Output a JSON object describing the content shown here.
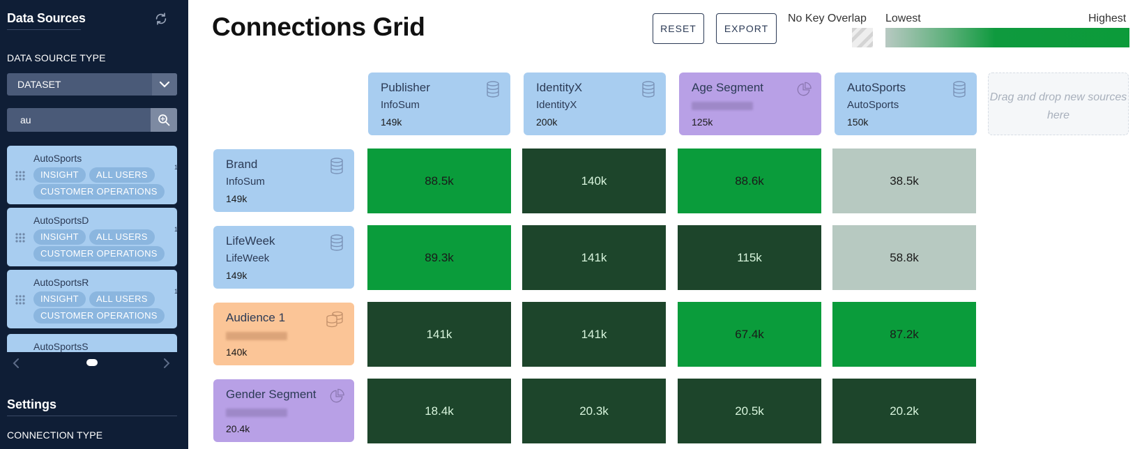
{
  "sidebar": {
    "title": "Data Sources",
    "data_source_type_label": "DATA SOURCE TYPE",
    "data_source_type_value": "DATASET",
    "search_value": "au",
    "sources": [
      {
        "name": "AutoSports",
        "tags": [
          "INSIGHT",
          "ALL USERS",
          "CUSTOMER OPERATIONS"
        ],
        "edge": "15"
      },
      {
        "name": "AutoSportsD",
        "tags": [
          "INSIGHT",
          "ALL USERS",
          "CUSTOMER OPERATIONS"
        ],
        "edge": "14"
      },
      {
        "name": "AutoSportsR",
        "tags": [
          "INSIGHT",
          "ALL USERS",
          "CUSTOMER OPERATIONS"
        ],
        "edge": "15"
      },
      {
        "name": "AutoSportsS"
      }
    ],
    "settings_title": "Settings",
    "connection_type_label": "CONNECTION TYPE"
  },
  "main": {
    "title": "Connections Grid",
    "reset_label": "RESET",
    "export_label": "EXPORT",
    "legend": {
      "no_key_overlap": "No Key Overlap",
      "lowest": "Lowest",
      "highest": "Highest"
    },
    "dropzone_text": "Drag and drop new sources here",
    "columns": [
      {
        "name": "Publisher",
        "sub": "InfoSum",
        "count": "149k",
        "icon": "database-icon",
        "color": "#a8cdf0"
      },
      {
        "name": "IdentityX",
        "sub": "IdentityX",
        "count": "200k",
        "icon": "database-icon",
        "color": "#a8cdf0"
      },
      {
        "name": "Age Segment",
        "sub": "",
        "count": "125k",
        "icon": "pie-chart-icon",
        "color": "#b8a0e6"
      },
      {
        "name": "AutoSports",
        "sub": "AutoSports",
        "count": "150k",
        "icon": "database-icon",
        "color": "#a8cdf0"
      }
    ],
    "rows": [
      {
        "name": "Brand",
        "sub": "InfoSum",
        "count": "149k",
        "icon": "database-icon",
        "color": "#a8cdf0",
        "cells": [
          {
            "v": "88.5k",
            "lvl": "bright"
          },
          {
            "v": "140k",
            "lvl": "dark"
          },
          {
            "v": "88.6k",
            "lvl": "bright"
          },
          {
            "v": "38.5k",
            "lvl": "light"
          }
        ]
      },
      {
        "name": "LifeWeek",
        "sub": "LifeWeek",
        "count": "149k",
        "icon": "database-icon",
        "color": "#a8cdf0",
        "cells": [
          {
            "v": "89.3k",
            "lvl": "bright"
          },
          {
            "v": "141k",
            "lvl": "dark"
          },
          {
            "v": "115k",
            "lvl": "dark"
          },
          {
            "v": "58.8k",
            "lvl": "light"
          }
        ]
      },
      {
        "name": "Audience 1",
        "sub": "",
        "count": "140k",
        "icon": "stacked-database-icon",
        "color": "#fbc597",
        "cells": [
          {
            "v": "141k",
            "lvl": "dark"
          },
          {
            "v": "141k",
            "lvl": "dark"
          },
          {
            "v": "67.4k",
            "lvl": "bright"
          },
          {
            "v": "87.2k",
            "lvl": "bright"
          }
        ]
      },
      {
        "name": "Gender Segment",
        "sub": "",
        "count": "20.4k",
        "icon": "pie-chart-icon",
        "color": "#b8a0e6",
        "cells": [
          {
            "v": "18.4k",
            "lvl": "dark"
          },
          {
            "v": "20.3k",
            "lvl": "dark"
          },
          {
            "v": "20.5k",
            "lvl": "dark"
          },
          {
            "v": "20.2k",
            "lvl": "dark"
          }
        ]
      }
    ]
  }
}
